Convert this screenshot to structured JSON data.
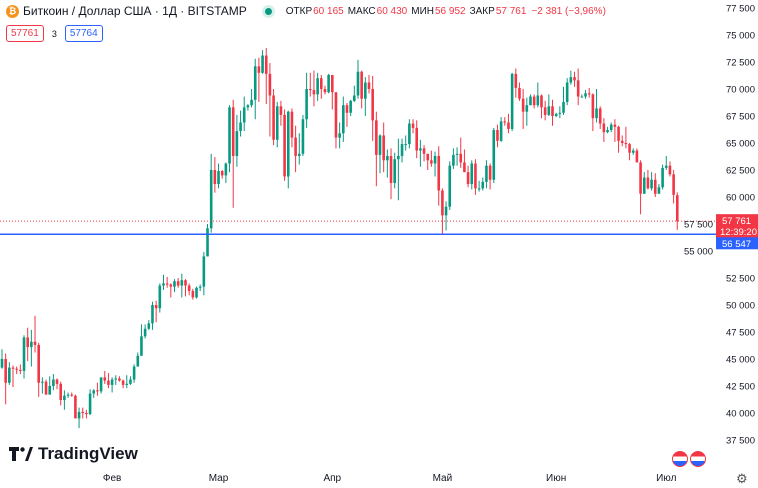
{
  "header": {
    "symbol": "Биткоин / Доллар США · 1Д · BITSTAMP",
    "coin_icon": "bitcoin-icon",
    "open_label": "ОТКР",
    "open": "60 165",
    "high_label": "МАКС",
    "high": "60 430",
    "low_label": "МИН",
    "low": "56 952",
    "close_label": "ЗАКР",
    "close": "57 761",
    "change": "−2 381 (−3,96%)",
    "sell": "57761",
    "spread": "3",
    "buy": "57764"
  },
  "colors": {
    "up": "#089981",
    "down": "#f23645",
    "line": "#2962ff"
  },
  "logo": "TradingView",
  "chart_data": {
    "type": "candlestick",
    "x_ticks": [
      "Фев",
      "Мар",
      "Апр",
      "Май",
      "Июн",
      "Июл"
    ],
    "y_ticks": [
      37500,
      40000,
      42500,
      45000,
      47500,
      50000,
      52500,
      55000,
      57500,
      60000,
      62500,
      65000,
      67500,
      70000,
      72500,
      75000,
      77500
    ],
    "ylim": [
      35500,
      77500
    ],
    "grid": false,
    "last_price": {
      "value": 57761,
      "label": "57 761",
      "countdown": "12:39:20"
    },
    "horizontal_line": {
      "value": 56547,
      "label": "56 547"
    },
    "ohlc": [
      [
        44200,
        45900,
        44100,
        45000
      ],
      [
        45000,
        45500,
        40800,
        42800
      ],
      [
        42800,
        44700,
        42600,
        44200
      ],
      [
        44200,
        44400,
        42400,
        44100
      ],
      [
        44100,
        44300,
        43600,
        44000
      ],
      [
        44000,
        44500,
        43600,
        43900
      ],
      [
        43900,
        47200,
        43200,
        47000
      ],
      [
        47000,
        47900,
        44800,
        46100
      ],
      [
        46100,
        47700,
        44300,
        46600
      ],
      [
        46600,
        49000,
        45600,
        46300
      ],
      [
        46300,
        46500,
        41500,
        42800
      ],
      [
        42800,
        43300,
        41800,
        42900
      ],
      [
        42900,
        43100,
        41700,
        41700
      ],
      [
        41700,
        43400,
        41700,
        42500
      ],
      [
        42500,
        43600,
        42100,
        43100
      ],
      [
        43100,
        43200,
        42200,
        42700
      ],
      [
        42700,
        42900,
        40700,
        41200
      ],
      [
        41200,
        42100,
        40300,
        41600
      ],
      [
        41600,
        41900,
        41400,
        41700
      ],
      [
        41700,
        41900,
        41500,
        41600
      ],
      [
        41600,
        41700,
        39500,
        39500
      ],
      [
        39500,
        40500,
        38600,
        40100
      ],
      [
        40100,
        40500,
        39500,
        40000
      ],
      [
        40000,
        40300,
        39500,
        39900
      ],
      [
        39900,
        42200,
        39800,
        41800
      ],
      [
        41800,
        42200,
        41400,
        42100
      ],
      [
        42100,
        42800,
        41600,
        42000
      ],
      [
        42000,
        43300,
        41800,
        43300
      ],
      [
        43300,
        43900,
        42700,
        43000
      ],
      [
        43000,
        43700,
        42300,
        42600
      ],
      [
        42600,
        43300,
        41900,
        43100
      ],
      [
        43100,
        43500,
        42600,
        43200
      ],
      [
        43200,
        43400,
        42900,
        43000
      ],
      [
        43000,
        43100,
        42300,
        42600
      ],
      [
        42600,
        43500,
        42300,
        42700
      ],
      [
        42700,
        43400,
        42600,
        43100
      ],
      [
        43100,
        44500,
        42800,
        44300
      ],
      [
        44300,
        45600,
        44300,
        45300
      ],
      [
        45300,
        48200,
        45300,
        47100
      ],
      [
        47100,
        48200,
        46900,
        47800
      ],
      [
        47800,
        48600,
        47700,
        48300
      ],
      [
        48300,
        50300,
        47700,
        50000
      ],
      [
        50000,
        50400,
        48400,
        49700
      ],
      [
        49700,
        52000,
        49300,
        51800
      ],
      [
        51800,
        52800,
        51400,
        52000
      ],
      [
        52000,
        52600,
        51600,
        51900
      ],
      [
        51900,
        52000,
        50700,
        51700
      ],
      [
        51700,
        52400,
        51200,
        52200
      ],
      [
        52200,
        52500,
        51600,
        51800
      ],
      [
        51800,
        52900,
        50700,
        52300
      ],
      [
        52300,
        52400,
        50800,
        51800
      ],
      [
        51800,
        52000,
        50900,
        51300
      ],
      [
        51300,
        51500,
        50500,
        50700
      ],
      [
        50700,
        51700,
        50600,
        51600
      ],
      [
        51600,
        51900,
        51300,
        51700
      ],
      [
        51700,
        54900,
        50900,
        54500
      ],
      [
        54500,
        57500,
        54500,
        57100
      ],
      [
        57100,
        64000,
        56700,
        62500
      ],
      [
        62500,
        63700,
        60400,
        61200
      ],
      [
        61200,
        63100,
        60800,
        62400
      ],
      [
        62400,
        62500,
        61700,
        62000
      ],
      [
        62000,
        63200,
        61300,
        63100
      ],
      [
        63100,
        68500,
        62300,
        68300
      ],
      [
        68300,
        69000,
        59000,
        63800
      ],
      [
        63800,
        67600,
        62800,
        66100
      ],
      [
        66100,
        68000,
        65600,
        66900
      ],
      [
        66900,
        69300,
        66100,
        68300
      ],
      [
        68300,
        68600,
        68000,
        68500
      ],
      [
        68500,
        70000,
        68300,
        69000
      ],
      [
        69000,
        72800,
        67200,
        72100
      ],
      [
        72100,
        72900,
        68800,
        71500
      ],
      [
        71500,
        73600,
        71400,
        73100
      ],
      [
        73100,
        73800,
        68600,
        71400
      ],
      [
        71400,
        72400,
        65600,
        69400
      ],
      [
        69400,
        70000,
        64800,
        65300
      ],
      [
        65300,
        68800,
        64600,
        68400
      ],
      [
        68400,
        68900,
        66600,
        67600
      ],
      [
        67600,
        68100,
        61500,
        61900
      ],
      [
        61900,
        68000,
        60800,
        67900
      ],
      [
        67900,
        68200,
        64600,
        65500
      ],
      [
        65500,
        66600,
        62300,
        63800
      ],
      [
        63800,
        65900,
        63000,
        64000
      ],
      [
        64000,
        67600,
        63800,
        67200
      ],
      [
        67200,
        71500,
        66400,
        70000
      ],
      [
        70000,
        71500,
        69300,
        69900
      ],
      [
        69900,
        71700,
        68400,
        69500
      ],
      [
        69500,
        71500,
        68900,
        71000
      ],
      [
        71000,
        71300,
        69100,
        70000
      ],
      [
        70000,
        70300,
        69500,
        69700
      ],
      [
        69700,
        71400,
        69600,
        71300
      ],
      [
        71300,
        71300,
        68100,
        69700
      ],
      [
        69700,
        69700,
        64500,
        65500
      ],
      [
        65500,
        66900,
        64500,
        65900
      ],
      [
        65900,
        69300,
        65100,
        68500
      ],
      [
        68500,
        68700,
        66500,
        67800
      ],
      [
        67800,
        69000,
        67500,
        68900
      ],
      [
        68900,
        70300,
        68800,
        69400
      ],
      [
        69400,
        72700,
        69100,
        71600
      ],
      [
        71600,
        71700,
        68200,
        69100
      ],
      [
        69100,
        71100,
        67500,
        70600
      ],
      [
        70600,
        71300,
        69600,
        70000
      ],
      [
        70000,
        71200,
        65200,
        67100
      ],
      [
        67100,
        67900,
        61000,
        63900
      ],
      [
        63900,
        65800,
        62200,
        65700
      ],
      [
        65700,
        66900,
        62300,
        63400
      ],
      [
        63400,
        64400,
        61800,
        63800
      ],
      [
        63800,
        64500,
        59800,
        61300
      ],
      [
        61300,
        64100,
        60800,
        63500
      ],
      [
        63500,
        65400,
        59700,
        63800
      ],
      [
        63800,
        65400,
        63200,
        64900
      ],
      [
        64900,
        65700,
        64300,
        64900
      ],
      [
        64900,
        67200,
        64500,
        66800
      ],
      [
        66800,
        67200,
        65900,
        66400
      ],
      [
        66400,
        67100,
        63600,
        64300
      ],
      [
        64300,
        65300,
        62800,
        64500
      ],
      [
        64500,
        64800,
        63300,
        64000
      ],
      [
        64000,
        64000,
        62500,
        63400
      ],
      [
        63400,
        64300,
        62800,
        63100
      ],
      [
        63100,
        64200,
        61900,
        63800
      ],
      [
        63800,
        64700,
        59200,
        60600
      ],
      [
        60600,
        60800,
        56500,
        58300
      ],
      [
        58300,
        59600,
        56900,
        59100
      ],
      [
        59100,
        63300,
        58800,
        62900
      ],
      [
        62900,
        64500,
        62600,
        63900
      ],
      [
        63900,
        64600,
        62900,
        64000
      ],
      [
        64000,
        65500,
        62700,
        63200
      ],
      [
        63200,
        64400,
        62300,
        62300
      ],
      [
        62300,
        62900,
        60900,
        61200
      ],
      [
        61200,
        63400,
        60700,
        63100
      ],
      [
        63100,
        63500,
        60200,
        60800
      ],
      [
        60800,
        61500,
        60500,
        60800
      ],
      [
        60800,
        61800,
        60600,
        61400
      ],
      [
        61400,
        63400,
        60800,
        62900
      ],
      [
        62900,
        63100,
        60700,
        61600
      ],
      [
        61600,
        66400,
        61300,
        66200
      ],
      [
        66200,
        66700,
        64600,
        65200
      ],
      [
        65200,
        67400,
        65100,
        67000
      ],
      [
        67000,
        67400,
        66600,
        66900
      ],
      [
        66900,
        67700,
        65900,
        66300
      ],
      [
        66300,
        71500,
        66100,
        71400
      ],
      [
        71400,
        71900,
        69200,
        70100
      ],
      [
        70100,
        70600,
        68900,
        69100
      ],
      [
        69100,
        70000,
        66300,
        67900
      ],
      [
        67900,
        69200,
        66600,
        68500
      ],
      [
        68500,
        69500,
        68500,
        69300
      ],
      [
        69300,
        69500,
        68200,
        68500
      ],
      [
        68500,
        70600,
        68300,
        69400
      ],
      [
        69400,
        69500,
        67300,
        68300
      ],
      [
        68300,
        68900,
        67100,
        67600
      ],
      [
        67600,
        69500,
        67500,
        68400
      ],
      [
        68400,
        69000,
        66600,
        67500
      ],
      [
        67500,
        67800,
        67400,
        67700
      ],
      [
        67700,
        68400,
        67300,
        67800
      ],
      [
        67800,
        70200,
        67600,
        68800
      ],
      [
        68800,
        71000,
        68500,
        70600
      ],
      [
        70600,
        71700,
        70400,
        71100
      ],
      [
        71100,
        71600,
        70200,
        70800
      ],
      [
        70800,
        71900,
        68500,
        69300
      ],
      [
        69300,
        69500,
        69200,
        69300
      ],
      [
        69300,
        69900,
        69100,
        69600
      ],
      [
        69600,
        70100,
        69200,
        69500
      ],
      [
        69500,
        69600,
        66100,
        67300
      ],
      [
        67300,
        70000,
        66900,
        68200
      ],
      [
        68200,
        68400,
        66300,
        66800
      ],
      [
        66800,
        67300,
        65100,
        66000
      ],
      [
        66000,
        66500,
        65900,
        66200
      ],
      [
        66200,
        66900,
        66000,
        66700
      ],
      [
        66700,
        67200,
        65100,
        66500
      ],
      [
        66500,
        66600,
        64100,
        65200
      ],
      [
        65200,
        65700,
        64700,
        65000
      ],
      [
        65000,
        66500,
        64500,
        64900
      ],
      [
        64900,
        65000,
        63400,
        64100
      ],
      [
        64100,
        64500,
        63900,
        64300
      ],
      [
        64300,
        64500,
        63200,
        63200
      ],
      [
        63200,
        63400,
        58400,
        60300
      ],
      [
        60300,
        62300,
        60300,
        61800
      ],
      [
        61800,
        62500,
        60700,
        60800
      ],
      [
        60800,
        62300,
        60600,
        61600
      ],
      [
        61600,
        62200,
        60000,
        60300
      ],
      [
        60300,
        61200,
        60300,
        60900
      ],
      [
        60900,
        63000,
        60700,
        62700
      ],
      [
        62700,
        63800,
        62500,
        62900
      ],
      [
        62900,
        63300,
        61900,
        62100
      ],
      [
        62100,
        62500,
        59400,
        60200
      ],
      [
        60165,
        60430,
        56952,
        57761
      ]
    ]
  }
}
